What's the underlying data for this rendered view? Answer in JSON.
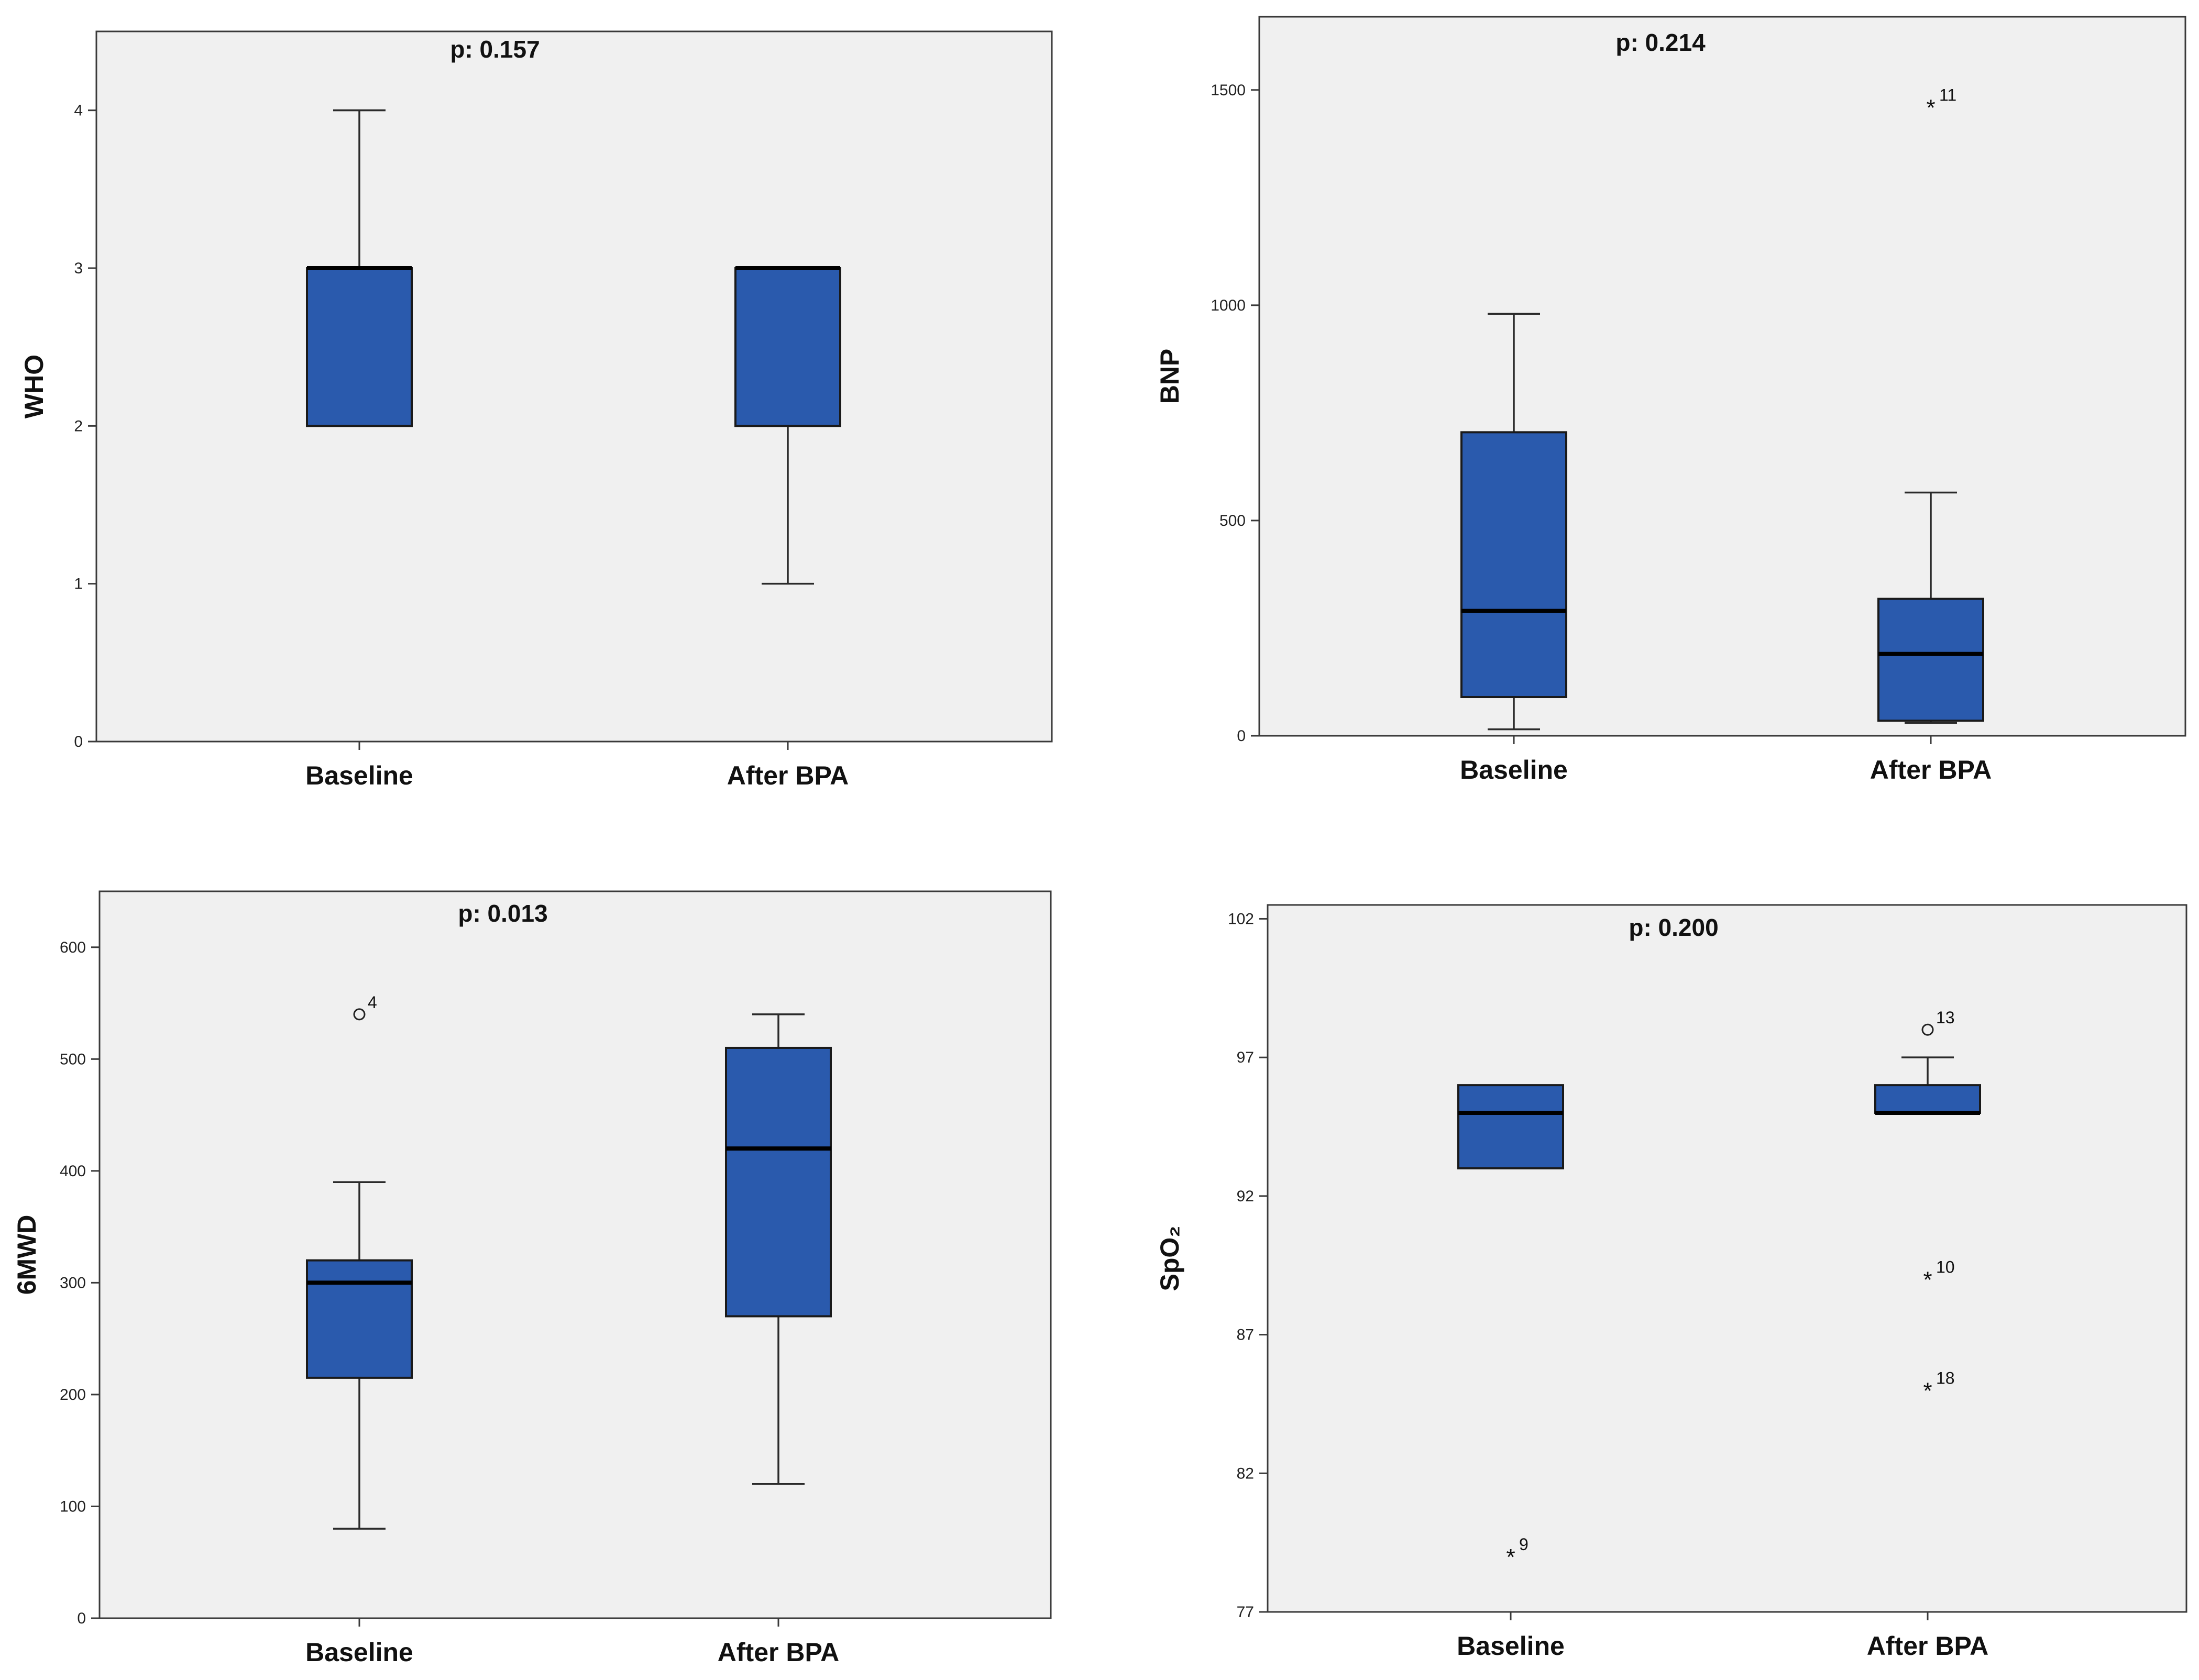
{
  "chart_data": [
    {
      "type": "boxplot",
      "ylabel": "WHO",
      "annotation": "p: 0.157",
      "ylim": [
        0,
        4.5
      ],
      "yticks": [
        0,
        1,
        2,
        3,
        4
      ],
      "categories": [
        "Baseline",
        "After BPA"
      ],
      "boxes": [
        {
          "category": "Baseline",
          "whisker_low": 2,
          "q1": 2,
          "median": 3,
          "q3": 3,
          "whisker_high": 4,
          "outliers": []
        },
        {
          "category": "After BPA",
          "whisker_low": 1,
          "q1": 2,
          "median": 3,
          "q3": 3,
          "whisker_high": 3,
          "outliers": []
        }
      ],
      "box_color": "#2a5aad"
    },
    {
      "type": "boxplot",
      "ylabel": "BNP",
      "annotation": "p: 0.214",
      "ylim": [
        0,
        1670
      ],
      "yticks": [
        0,
        500,
        1000,
        1500
      ],
      "categories": [
        "Baseline",
        "After BPA"
      ],
      "boxes": [
        {
          "category": "Baseline",
          "whisker_low": 15,
          "q1": 90,
          "median": 290,
          "q3": 705,
          "whisker_high": 980,
          "outliers": []
        },
        {
          "category": "After BPA",
          "whisker_low": 30,
          "q1": 35,
          "median": 190,
          "q3": 318,
          "whisker_high": 565,
          "outliers": [
            {
              "value": 1460,
              "marker": "star",
              "label": "11"
            }
          ]
        }
      ],
      "box_color": "#2a5aad"
    },
    {
      "type": "boxplot",
      "ylabel": "6MWD",
      "annotation": "p: 0.013",
      "ylim": [
        0,
        650
      ],
      "yticks": [
        0,
        100,
        200,
        300,
        400,
        500,
        600
      ],
      "categories": [
        "Baseline",
        "After BPA"
      ],
      "boxes": [
        {
          "category": "Baseline",
          "whisker_low": 80,
          "q1": 215,
          "median": 300,
          "q3": 320,
          "whisker_high": 390,
          "outliers": [
            {
              "value": 540,
              "marker": "circle",
              "label": "4"
            }
          ]
        },
        {
          "category": "After BPA",
          "whisker_low": 120,
          "q1": 270,
          "median": 420,
          "q3": 510,
          "whisker_high": 540,
          "outliers": []
        }
      ],
      "box_color": "#2a5aad"
    },
    {
      "type": "boxplot",
      "ylabel": "SpO₂",
      "annotation": "p: 0.200",
      "ylim": [
        77,
        102.5
      ],
      "yticks": [
        77,
        82,
        87,
        92,
        97,
        102
      ],
      "categories": [
        "Baseline",
        "After BPA"
      ],
      "boxes": [
        {
          "category": "Baseline",
          "whisker_low": 93,
          "q1": 93,
          "median": 95,
          "q3": 96,
          "whisker_high": 96,
          "outliers": [
            {
              "value": 79,
              "marker": "star",
              "label": "9"
            }
          ]
        },
        {
          "category": "After BPA",
          "whisker_low": 95,
          "q1": 95,
          "median": 95,
          "q3": 96,
          "whisker_high": 97,
          "outliers": [
            {
              "value": 98,
              "marker": "circle",
              "label": "13"
            },
            {
              "value": 89,
              "marker": "star",
              "label": "10"
            },
            {
              "value": 85,
              "marker": "star",
              "label": "18"
            }
          ]
        }
      ],
      "box_color": "#2a5aad"
    }
  ]
}
